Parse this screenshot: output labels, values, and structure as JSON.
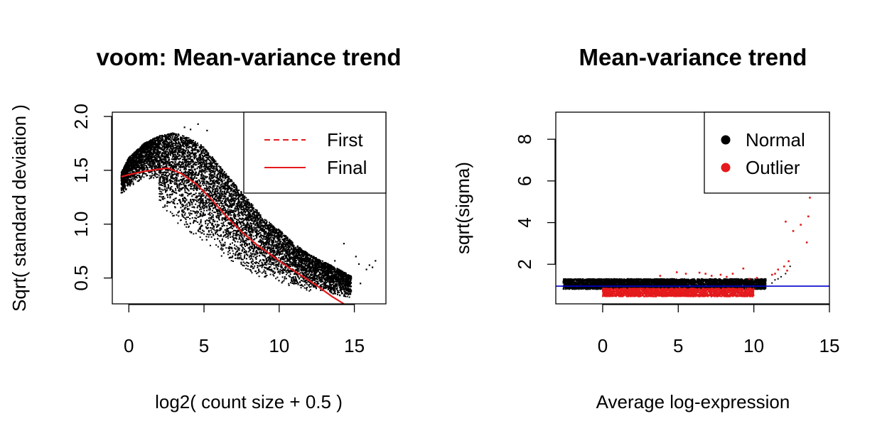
{
  "chart_data": [
    {
      "type": "scatter",
      "title": "voom: Mean-variance trend",
      "xlabel": "log2( count size + 0.5 )",
      "ylabel": "Sqrt( standard deviation )",
      "xlim": [
        -1.1,
        17.1
      ],
      "ylim": [
        0.26,
        2.04
      ],
      "xticks": [
        0,
        5,
        10,
        15
      ],
      "yticks": [
        0.5,
        1.0,
        1.5,
        2.0
      ],
      "ytick_labels": [
        "0.5",
        "1.0",
        "1.5",
        "2.0"
      ],
      "legend": {
        "position": "top-right",
        "entries": [
          {
            "label": "First",
            "style": "dashed",
            "color": "#e41a1c"
          },
          {
            "label": "Final",
            "style": "solid",
            "color": "#e41a1c"
          }
        ]
      },
      "point_color": "#000000",
      "cloud_upper": [
        [
          -0.5,
          1.48
        ],
        [
          0,
          1.62
        ],
        [
          1,
          1.75
        ],
        [
          2,
          1.82
        ],
        [
          3,
          1.85
        ],
        [
          4,
          1.8
        ],
        [
          5,
          1.72
        ],
        [
          6,
          1.55
        ],
        [
          7,
          1.38
        ],
        [
          8,
          1.22
        ],
        [
          9,
          1.05
        ],
        [
          10,
          0.95
        ],
        [
          11,
          0.82
        ],
        [
          12,
          0.72
        ],
        [
          13,
          0.65
        ],
        [
          14,
          0.58
        ],
        [
          15,
          0.5
        ]
      ],
      "cloud_lower": [
        [
          -0.5,
          1.12
        ],
        [
          0,
          1.15
        ],
        [
          1,
          1.2
        ],
        [
          2,
          1.1
        ],
        [
          3,
          0.95
        ],
        [
          4,
          0.82
        ],
        [
          5,
          0.7
        ],
        [
          6,
          0.6
        ],
        [
          7,
          0.52
        ],
        [
          8,
          0.47
        ],
        [
          9,
          0.42
        ],
        [
          10,
          0.4
        ],
        [
          11,
          0.36
        ],
        [
          12,
          0.34
        ],
        [
          13,
          0.33
        ],
        [
          14,
          0.3
        ],
        [
          15,
          0.28
        ]
      ],
      "outliers": [
        [
          14.3,
          0.82
        ],
        [
          14.2,
          0.55
        ],
        [
          15.1,
          0.7
        ],
        [
          15.3,
          0.63
        ],
        [
          15.4,
          0.45
        ],
        [
          15.8,
          0.58
        ],
        [
          16,
          0.62
        ],
        [
          16.4,
          0.66
        ],
        [
          16.2,
          0.6
        ],
        [
          13.7,
          0.66
        ],
        [
          13.5,
          0.5
        ],
        [
          4.6,
          1.93
        ],
        [
          4.1,
          1.88
        ],
        [
          5.2,
          1.87
        ],
        [
          3.7,
          1.9
        ]
      ],
      "series": [
        {
          "name": "Final",
          "style": "solid",
          "color": "#e41a1c",
          "points": [
            [
              -0.5,
              1.44
            ],
            [
              0,
              1.46
            ],
            [
              1,
              1.49
            ],
            [
              2,
              1.51
            ],
            [
              2.6,
              1.52
            ],
            [
              3.5,
              1.47
            ],
            [
              4.5,
              1.37
            ],
            [
              5.5,
              1.23
            ],
            [
              6.5,
              1.07
            ],
            [
              7.5,
              0.93
            ],
            [
              8.5,
              0.81
            ],
            [
              9.5,
              0.71
            ],
            [
              10.5,
              0.61
            ],
            [
              11.5,
              0.52
            ],
            [
              12.5,
              0.43
            ],
            [
              13.5,
              0.33
            ],
            [
              14.3,
              0.24
            ]
          ]
        }
      ]
    },
    {
      "type": "scatter",
      "title": "Mean-variance trend",
      "xlabel": "Average log-expression",
      "ylabel": "sqrt(sigma)",
      "xlim": [
        -3.1,
        15.0
      ],
      "ylim": [
        0.1,
        9.3
      ],
      "xticks": [
        0,
        5,
        10,
        15
      ],
      "yticks": [
        2,
        4,
        6,
        8
      ],
      "ytick_labels": [
        "2",
        "4",
        "6",
        "8"
      ],
      "hline": {
        "y": 0.95,
        "color": "#0000cc"
      },
      "legend": {
        "position": "top-right",
        "entries": [
          {
            "label": "Normal",
            "color": "#000000"
          },
          {
            "label": "Outlier",
            "color": "#e41a1c"
          }
        ]
      },
      "normal_band": {
        "x_range": [
          -2.6,
          10.8
        ],
        "y_low": 0.8,
        "y_high": 1.3
      },
      "outlier_band": {
        "x_range": [
          0,
          10
        ],
        "y_low": 0.45,
        "y_high": 0.85
      },
      "outliers": [
        [
          12.1,
          4.05
        ],
        [
          12.3,
          2.15
        ],
        [
          12.2,
          1.7
        ],
        [
          12.6,
          3.6
        ],
        [
          13.1,
          3.9
        ],
        [
          13.5,
          3.05
        ],
        [
          13.6,
          4.3
        ],
        [
          13.7,
          5.2
        ],
        [
          11.6,
          1.75
        ],
        [
          12.0,
          1.9
        ],
        [
          11.4,
          1.55
        ],
        [
          11.2,
          1.5
        ],
        [
          9.3,
          1.8
        ],
        [
          8.6,
          1.55
        ],
        [
          7.8,
          1.5
        ],
        [
          6.4,
          1.6
        ],
        [
          5.5,
          1.55
        ],
        [
          4.9,
          1.62
        ],
        [
          3.8,
          1.45
        ],
        [
          6.8,
          1.55
        ],
        [
          7.2,
          1.45
        ],
        [
          8.2,
          1.4
        ],
        [
          9.7,
          1.3
        ],
        [
          10.2,
          1.35
        ]
      ],
      "normal_extras": [
        [
          11.2,
          1.1
        ],
        [
          11.4,
          1.25
        ],
        [
          11.6,
          1.3
        ],
        [
          11.8,
          1.4
        ],
        [
          12.1,
          1.55
        ],
        [
          12.4,
          1.9
        ]
      ]
    }
  ]
}
